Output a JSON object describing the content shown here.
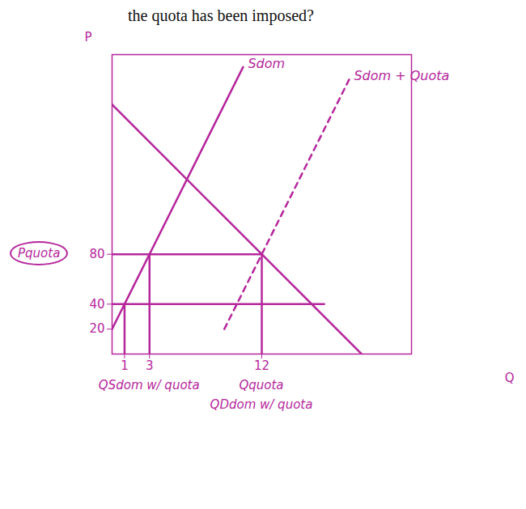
{
  "chart_data": {
    "type": "line",
    "title": "the quota has been imposed?",
    "x_label": "Q",
    "y_label": "P",
    "color": "#b5279b",
    "xlim": [
      0,
      24
    ],
    "ylim": [
      0,
      240
    ],
    "xticks": [
      1,
      3,
      12
    ],
    "yticks": [
      20,
      40,
      80
    ],
    "grid": false,
    "legend": false,
    "series": [
      {
        "name": "Sdom",
        "x": [
          0,
          10.5
        ],
        "values": [
          20,
          230
        ],
        "line_style": "solid"
      },
      {
        "name": "Sdom + Quota",
        "x": [
          9,
          19
        ],
        "values": [
          20,
          220
        ],
        "line_style": "dashed"
      },
      {
        "x": [
          0,
          20
        ],
        "values": [
          200,
          0
        ],
        "line_style": "solid"
      },
      {
        "x": [
          0,
          12
        ],
        "values": [
          80,
          80
        ],
        "line_style": "solid"
      },
      {
        "x": [
          0,
          17
        ],
        "values": [
          40,
          40
        ],
        "line_style": "solid"
      },
      {
        "x": [
          1,
          1
        ],
        "values": [
          0,
          40
        ],
        "line_style": "solid"
      },
      {
        "x": [
          3,
          3
        ],
        "values": [
          0,
          80
        ],
        "line_style": "solid"
      },
      {
        "x": [
          12,
          12
        ],
        "values": [
          0,
          80
        ],
        "line_style": "solid"
      }
    ],
    "annotations": [
      {
        "text": "Pquota",
        "y": 80
      },
      {
        "text": "QSdom w/ quota",
        "x": 3
      },
      {
        "text": "Qquota",
        "x": 12
      },
      {
        "text": "QDdom w/ quota",
        "x": 12
      }
    ]
  }
}
